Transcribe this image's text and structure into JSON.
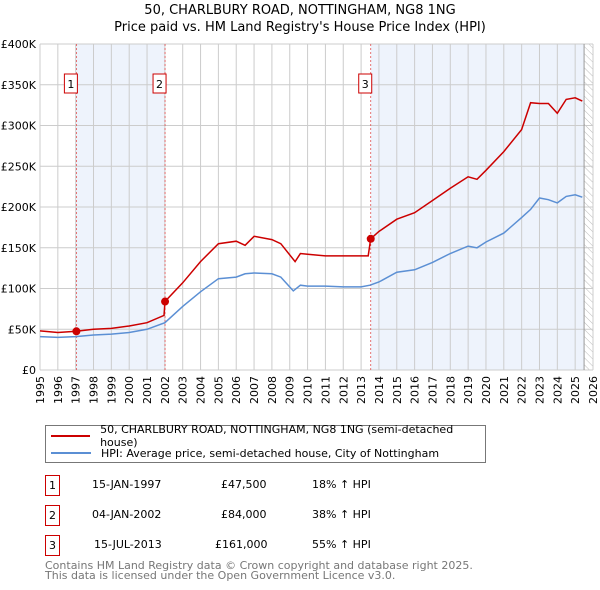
{
  "title": "50, CHARLBURY ROAD, NOTTINGHAM, NG8 1NG",
  "subtitle": "Price paid vs. HM Land Registry's House Price Index (HPI)",
  "chart_data": {
    "type": "line",
    "title": "50, CHARLBURY ROAD, NOTTINGHAM, NG8 1NG",
    "xlim": [
      1995,
      2026
    ],
    "ylim": [
      0,
      400000
    ],
    "y_ticks": [
      0,
      50000,
      100000,
      150000,
      200000,
      250000,
      300000,
      350000,
      400000
    ],
    "y_tick_labels": [
      "£0",
      "£50K",
      "£100K",
      "£150K",
      "£200K",
      "£250K",
      "£300K",
      "£350K",
      "£400K"
    ],
    "x_tick_labels": [
      "1995",
      "1996",
      "1997",
      "1998",
      "1999",
      "2000",
      "2001",
      "2002",
      "2003",
      "2004",
      "2005",
      "2006",
      "2007",
      "2008",
      "2009",
      "2010",
      "2011",
      "2012",
      "2013",
      "2014",
      "2015",
      "2016",
      "2017",
      "2018",
      "2019",
      "2020",
      "2021",
      "2022",
      "2023",
      "2024",
      "2025",
      "2026"
    ],
    "grid": true,
    "data_end": 2025.5,
    "colors": {
      "property": "#cc0000",
      "hpi": "#5b8fd4",
      "shade": "#eef3fc"
    },
    "series": [
      {
        "name": "50, CHARLBURY ROAD, NOTTINGHAM, NG8 1NG (semi-detached house)",
        "x": [
          1995,
          1996,
          1997.04,
          1998,
          1999,
          2000,
          2001,
          2001.95,
          2002.01,
          2003,
          2004,
          2005,
          2006,
          2006.5,
          2007,
          2008,
          2008.5,
          2009.3,
          2009.6,
          2010,
          2011,
          2012,
          2013.4,
          2013.54,
          2014,
          2015,
          2016,
          2017,
          2018,
          2019,
          2019.5,
          2020,
          2021,
          2022,
          2022.5,
          2023,
          2023.5,
          2024,
          2024.5,
          2025,
          2025.4
        ],
        "values": [
          48000,
          46000,
          47500,
          50000,
          51000,
          54000,
          58000,
          67000,
          84000,
          107000,
          133000,
          155000,
          158000,
          153000,
          164000,
          160000,
          155000,
          133000,
          143000,
          142000,
          140000,
          140000,
          140000,
          161000,
          170000,
          185000,
          193000,
          208000,
          223000,
          237000,
          234000,
          245000,
          268000,
          295000,
          328000,
          327000,
          327000,
          315000,
          332000,
          334000,
          330000
        ]
      },
      {
        "name": "HPI: Average price, semi-detached house, City of Nottingham",
        "x": [
          1995,
          1996,
          1997,
          1998,
          1999,
          2000,
          2001,
          2002,
          2003,
          2004,
          2005,
          2006,
          2006.5,
          2007,
          2008,
          2008.5,
          2009.2,
          2009.6,
          2010,
          2011,
          2012,
          2013,
          2013.5,
          2014,
          2015,
          2016,
          2017,
          2018,
          2019,
          2019.5,
          2020,
          2021,
          2022,
          2022.5,
          2023,
          2023.5,
          2024,
          2024.5,
          2025,
          2025.4
        ],
        "values": [
          41000,
          40000,
          41000,
          43000,
          44000,
          46000,
          50000,
          58000,
          78000,
          96000,
          112000,
          114000,
          118000,
          119000,
          118000,
          114000,
          97000,
          104000,
          103000,
          103000,
          102000,
          102000,
          104000,
          108000,
          120000,
          123000,
          132000,
          143000,
          152000,
          150000,
          157000,
          168000,
          187000,
          197000,
          211000,
          209000,
          205000,
          213000,
          215000,
          212000
        ]
      }
    ],
    "sales": [
      {
        "label": "1",
        "x": 1997.04,
        "value": 47500
      },
      {
        "label": "2",
        "x": 2002.01,
        "value": 84000
      },
      {
        "label": "3",
        "x": 2013.54,
        "value": 161000
      }
    ]
  },
  "legend": [
    "50, CHARLBURY ROAD, NOTTINGHAM, NG8 1NG (semi-detached house)",
    "HPI: Average price, semi-detached house, City of Nottingham"
  ],
  "sales_table": [
    {
      "num": "1",
      "date": "15-JAN-1997",
      "price": "£47,500",
      "hpi": "18% ↑ HPI"
    },
    {
      "num": "2",
      "date": "04-JAN-2002",
      "price": "£84,000",
      "hpi": "38% ↑ HPI"
    },
    {
      "num": "3",
      "date": "15-JUL-2013",
      "price": "£161,000",
      "hpi": "55% ↑ HPI"
    }
  ],
  "footer": [
    "Contains HM Land Registry data © Crown copyright and database right 2025.",
    "This data is licensed under the Open Government Licence v3.0."
  ]
}
